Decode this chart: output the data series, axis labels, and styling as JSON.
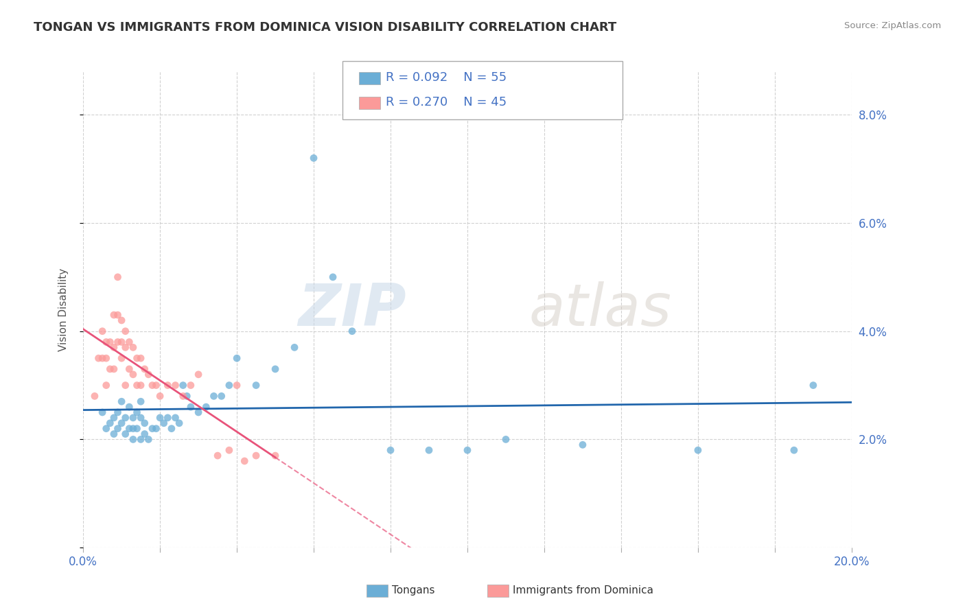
{
  "title": "TONGAN VS IMMIGRANTS FROM DOMINICA VISION DISABILITY CORRELATION CHART",
  "source": "Source: ZipAtlas.com",
  "ylabel": "Vision Disability",
  "xlim": [
    0.0,
    0.2
  ],
  "ylim": [
    0.0,
    0.088
  ],
  "xticks": [
    0.0,
    0.02,
    0.04,
    0.06,
    0.08,
    0.1,
    0.12,
    0.14,
    0.16,
    0.18,
    0.2
  ],
  "yticks": [
    0.0,
    0.02,
    0.04,
    0.06,
    0.08
  ],
  "ytick_labels": [
    "",
    "2.0%",
    "4.0%",
    "6.0%",
    "8.0%"
  ],
  "legend_r1": "R = 0.092",
  "legend_n1": "N = 55",
  "legend_r2": "R = 0.270",
  "legend_n2": "N = 45",
  "color_tongan": "#6baed6",
  "color_dominica": "#fb9a99",
  "color_line_tongan": "#2166ac",
  "color_line_dominica": "#e8537a",
  "background_color": "#ffffff",
  "grid_color": "#cccccc",
  "tongans_x": [
    0.005,
    0.006,
    0.007,
    0.008,
    0.008,
    0.009,
    0.009,
    0.01,
    0.01,
    0.011,
    0.011,
    0.012,
    0.012,
    0.013,
    0.013,
    0.013,
    0.014,
    0.014,
    0.015,
    0.015,
    0.015,
    0.016,
    0.016,
    0.017,
    0.018,
    0.019,
    0.02,
    0.021,
    0.022,
    0.023,
    0.024,
    0.025,
    0.026,
    0.027,
    0.028,
    0.03,
    0.032,
    0.034,
    0.036,
    0.038,
    0.04,
    0.045,
    0.05,
    0.055,
    0.06,
    0.065,
    0.07,
    0.08,
    0.09,
    0.1,
    0.11,
    0.13,
    0.16,
    0.185,
    0.19
  ],
  "tongans_y": [
    0.025,
    0.022,
    0.023,
    0.024,
    0.021,
    0.025,
    0.022,
    0.027,
    0.023,
    0.024,
    0.021,
    0.026,
    0.022,
    0.024,
    0.022,
    0.02,
    0.025,
    0.022,
    0.027,
    0.024,
    0.02,
    0.023,
    0.021,
    0.02,
    0.022,
    0.022,
    0.024,
    0.023,
    0.024,
    0.022,
    0.024,
    0.023,
    0.03,
    0.028,
    0.026,
    0.025,
    0.026,
    0.028,
    0.028,
    0.03,
    0.035,
    0.03,
    0.033,
    0.037,
    0.072,
    0.05,
    0.04,
    0.018,
    0.018,
    0.018,
    0.02,
    0.019,
    0.018,
    0.018,
    0.03
  ],
  "dominica_x": [
    0.003,
    0.004,
    0.005,
    0.005,
    0.006,
    0.006,
    0.006,
    0.007,
    0.007,
    0.008,
    0.008,
    0.008,
    0.009,
    0.009,
    0.009,
    0.01,
    0.01,
    0.01,
    0.011,
    0.011,
    0.011,
    0.012,
    0.012,
    0.013,
    0.013,
    0.014,
    0.014,
    0.015,
    0.015,
    0.016,
    0.017,
    0.018,
    0.019,
    0.02,
    0.022,
    0.024,
    0.026,
    0.028,
    0.03,
    0.035,
    0.038,
    0.04,
    0.042,
    0.045,
    0.05
  ],
  "dominica_y": [
    0.028,
    0.035,
    0.04,
    0.035,
    0.038,
    0.035,
    0.03,
    0.038,
    0.033,
    0.043,
    0.037,
    0.033,
    0.05,
    0.043,
    0.038,
    0.042,
    0.038,
    0.035,
    0.04,
    0.037,
    0.03,
    0.038,
    0.033,
    0.037,
    0.032,
    0.035,
    0.03,
    0.035,
    0.03,
    0.033,
    0.032,
    0.03,
    0.03,
    0.028,
    0.03,
    0.03,
    0.028,
    0.03,
    0.032,
    0.017,
    0.018,
    0.03,
    0.016,
    0.017,
    0.017
  ]
}
